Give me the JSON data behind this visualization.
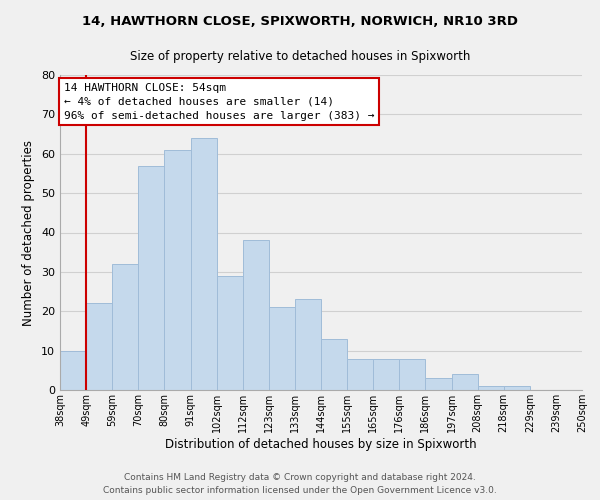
{
  "title": "14, HAWTHORN CLOSE, SPIXWORTH, NORWICH, NR10 3RD",
  "subtitle": "Size of property relative to detached houses in Spixworth",
  "xlabel": "Distribution of detached houses by size in Spixworth",
  "ylabel": "Number of detached properties",
  "bar_labels": [
    "38sqm",
    "49sqm",
    "59sqm",
    "70sqm",
    "80sqm",
    "91sqm",
    "102sqm",
    "112sqm",
    "123sqm",
    "133sqm",
    "144sqm",
    "155sqm",
    "165sqm",
    "176sqm",
    "186sqm",
    "197sqm",
    "208sqm",
    "218sqm",
    "229sqm",
    "239sqm",
    "250sqm"
  ],
  "bar_values": [
    10,
    22,
    32,
    57,
    61,
    64,
    29,
    38,
    21,
    23,
    13,
    8,
    8,
    8,
    3,
    4,
    1,
    1,
    0,
    0
  ],
  "bar_color": "#c5d9ec",
  "bar_edge_color": "#a0bcd8",
  "grid_color": "#d0d0d0",
  "background_color": "#f0f0f0",
  "vline_x": 1,
  "vline_color": "#cc0000",
  "annotation_title": "14 HAWTHORN CLOSE: 54sqm",
  "annotation_line1": "← 4% of detached houses are smaller (14)",
  "annotation_line2": "96% of semi-detached houses are larger (383) →",
  "annotation_box_color": "#ffffff",
  "annotation_box_edge": "#cc0000",
  "footnote1": "Contains HM Land Registry data © Crown copyright and database right 2024.",
  "footnote2": "Contains public sector information licensed under the Open Government Licence v3.0.",
  "ylim": [
    0,
    80
  ],
  "yticks": [
    0,
    10,
    20,
    30,
    40,
    50,
    60,
    70,
    80
  ]
}
